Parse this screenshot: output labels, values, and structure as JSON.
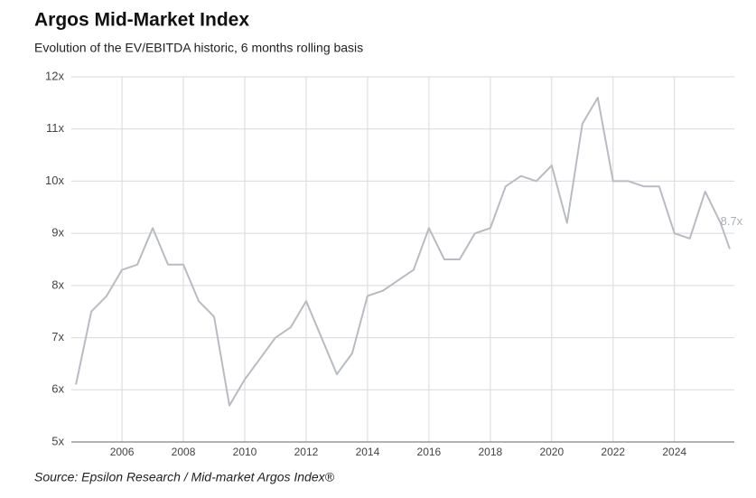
{
  "chart_data": {
    "type": "line",
    "title": "Argos Mid-Market Index",
    "subtitle": "Evolution of the EV/EBITDA historic, 6 months rolling basis",
    "source": "Source: Epsilon Research / Mid-market Argos Index®",
    "x": [
      2004.5,
      2005,
      2005.5,
      2006,
      2006.5,
      2007,
      2007.5,
      2008,
      2008.5,
      2009,
      2009.5,
      2010,
      2010.5,
      2011,
      2011.5,
      2012,
      2012.5,
      2013,
      2013.5,
      2014,
      2014.5,
      2015,
      2015.5,
      2016,
      2016.5,
      2017,
      2017.5,
      2018,
      2018.5,
      2019,
      2019.5,
      2020,
      2020.5,
      2021,
      2021.5,
      2022,
      2022.5,
      2023,
      2023.5,
      2024,
      2024.5,
      2025,
      2025.5,
      2025.8
    ],
    "series": [
      {
        "color": "#b8bcc2",
        "values": [
          6.1,
          7.5,
          7.8,
          8.3,
          8.4,
          9.1,
          8.4,
          8.4,
          7.7,
          7.4,
          5.7,
          6.2,
          6.6,
          7.0,
          7.2,
          7.7,
          7.0,
          6.3,
          6.7,
          7.8,
          7.9,
          8.1,
          8.3,
          9.1,
          8.5,
          8.5,
          9.0,
          9.1,
          9.9,
          10.1,
          10.0,
          10.3,
          9.2,
          11.1,
          11.6,
          10.0,
          10.0,
          9.9,
          9.9,
          9.0,
          8.9,
          9.8,
          9.2,
          8.7
        ],
        "value_labels": [
          null,
          null,
          null,
          null,
          null,
          null,
          null,
          null,
          null,
          null,
          null,
          null,
          null,
          null,
          null,
          null,
          null,
          null,
          null,
          null,
          null,
          null,
          null,
          null,
          null,
          null,
          null,
          null,
          null,
          null,
          null,
          null,
          null,
          null,
          null,
          null,
          null,
          null,
          null,
          null,
          null,
          null,
          null,
          "8.7x"
        ]
      }
    ],
    "xlim": [
      2004.35,
      2025.95
    ],
    "xticks": [
      2006,
      2008,
      2010,
      2012,
      2014,
      2016,
      2018,
      2020,
      2022,
      2024
    ],
    "ylim": [
      5,
      12
    ],
    "yticks": [
      {
        "value": 5,
        "label": "5x"
      },
      {
        "value": 6,
        "label": "6x"
      },
      {
        "value": 7,
        "label": "7x"
      },
      {
        "value": 8,
        "label": "8x"
      },
      {
        "value": 9,
        "label": "9x"
      },
      {
        "value": 10,
        "label": "10x"
      },
      {
        "value": 11,
        "label": "11x"
      },
      {
        "value": 12,
        "label": "12x"
      }
    ],
    "grid": true
  }
}
